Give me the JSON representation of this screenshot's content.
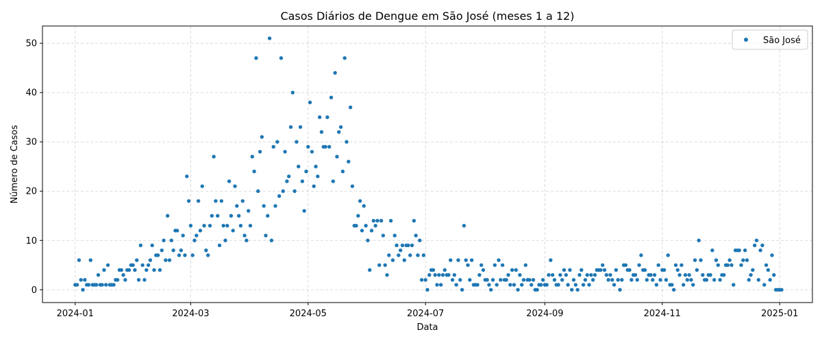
{
  "chart_data": {
    "type": "scatter",
    "title": "Casos Diários de Dengue em São José (meses 1 a 12)",
    "xlabel": "Data",
    "ylabel": "Número de Casos",
    "x_axis_type": "date",
    "xlim": [
      "2023-12-15",
      "2025-01-18"
    ],
    "ylim": [
      -2.6,
      53.5
    ],
    "x_ticks": [
      {
        "date": "2024-01-01",
        "label": "2024-01"
      },
      {
        "date": "2024-03-01",
        "label": "2024-03"
      },
      {
        "date": "2024-05-01",
        "label": "2024-05"
      },
      {
        "date": "2024-07-01",
        "label": "2024-07"
      },
      {
        "date": "2024-09-01",
        "label": "2024-09"
      },
      {
        "date": "2024-11-01",
        "label": "2024-11"
      },
      {
        "date": "2025-01-01",
        "label": "2025-01"
      }
    ],
    "y_ticks": [
      0,
      10,
      20,
      30,
      40,
      50
    ],
    "grid": true,
    "legend_position": "top-right",
    "point_color": "#1f77b4",
    "series": [
      {
        "name": "São José",
        "start_date": "2024-01-01",
        "values": [
          1,
          1,
          6,
          2,
          0,
          2,
          1,
          1,
          6,
          1,
          1,
          1,
          3,
          1,
          1,
          4,
          1,
          5,
          1,
          1,
          1,
          2,
          2,
          4,
          4,
          3,
          2,
          4,
          4,
          5,
          5,
          4,
          6,
          2,
          9,
          5,
          2,
          4,
          5,
          6,
          9,
          4,
          7,
          7,
          4,
          8,
          10,
          6,
          15,
          6,
          10,
          8,
          12,
          12,
          7,
          8,
          11,
          7,
          23,
          18,
          13,
          7,
          10,
          11,
          18,
          12,
          21,
          13,
          8,
          7,
          13,
          15,
          27,
          18,
          15,
          9,
          18,
          13,
          10,
          13,
          22,
          15,
          12,
          21,
          17,
          15,
          13,
          18,
          11,
          10,
          16,
          13,
          27,
          24,
          47,
          20,
          28,
          31,
          17,
          11,
          15,
          51,
          10,
          29,
          17,
          30,
          19,
          47,
          20,
          28,
          22,
          23,
          33,
          40,
          20,
          30,
          25,
          33,
          22,
          16,
          24,
          29,
          38,
          28,
          21,
          25,
          23,
          35,
          32,
          29,
          29,
          35,
          29,
          39,
          22,
          44,
          27,
          32,
          33,
          24,
          47,
          30,
          26,
          37,
          21,
          13,
          13,
          15,
          18,
          12,
          17,
          13,
          10,
          4,
          12,
          14,
          13,
          14,
          5,
          14,
          11,
          5,
          3,
          7,
          14,
          6,
          11,
          9,
          7,
          8,
          9,
          6,
          9,
          9,
          7,
          9,
          14,
          11,
          7,
          10,
          2,
          7,
          2,
          0,
          3,
          4,
          4,
          3,
          1,
          3,
          1,
          3,
          4,
          3,
          3,
          6,
          2,
          3,
          1,
          6,
          2,
          0,
          13,
          6,
          5,
          2,
          6,
          1,
          1,
          1,
          3,
          5,
          4,
          2,
          2,
          1,
          0,
          2,
          5,
          1,
          6,
          2,
          5,
          2,
          2,
          3,
          1,
          4,
          1,
          4,
          0,
          3,
          1,
          2,
          5,
          2,
          2,
          1,
          2,
          0,
          0,
          1,
          1,
          2,
          1,
          1,
          3,
          6,
          3,
          2,
          1,
          1,
          3,
          2,
          4,
          3,
          1,
          4,
          0,
          2,
          1,
          0,
          3,
          4,
          1,
          2,
          3,
          1,
          3,
          2,
          3,
          4,
          4,
          4,
          5,
          4,
          3,
          2,
          3,
          2,
          1,
          4,
          2,
          0,
          2,
          5,
          5,
          4,
          4,
          2,
          3,
          3,
          2,
          5,
          7,
          4,
          4,
          2,
          3,
          3,
          2,
          3,
          1,
          5,
          2,
          4,
          4,
          2,
          7,
          1,
          1,
          0,
          5,
          4,
          3,
          5,
          1,
          3,
          2,
          3,
          2,
          1,
          6,
          4,
          10,
          6,
          3,
          2,
          2,
          3,
          3,
          8,
          2,
          6,
          5,
          2,
          3,
          3,
          5,
          5,
          6,
          5,
          1,
          8,
          8,
          8,
          5,
          6,
          8,
          6,
          2,
          3,
          4,
          9,
          10,
          2,
          8,
          9,
          1,
          5,
          4,
          2,
          7,
          3,
          0,
          0,
          0,
          0
        ]
      }
    ]
  }
}
